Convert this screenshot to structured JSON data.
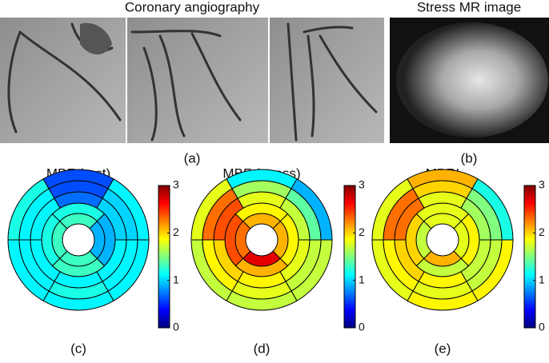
{
  "header_left": "Coronary angiography",
  "header_right": "Stress MR image",
  "caption_a": "(a)",
  "caption_b": "(b)",
  "chart_data": [
    {
      "type": "bullseye",
      "title": "MBF (rest)",
      "caption": "(c)",
      "colormap": "jet",
      "clim": [
        0,
        3
      ],
      "cticks": [
        0,
        1,
        2,
        3
      ],
      "rings": [
        [
          1.3,
          1.3,
          1.3,
          0.9
        ],
        [
          1.3,
          1.2,
          1.2,
          0.9
        ],
        [
          1.1,
          1.1,
          1.1,
          1.1,
          0.7,
          1.0
        ],
        [
          1.1,
          1.2,
          1.1,
          1.1,
          0.6,
          1.0
        ],
        [
          1.1,
          1.1,
          1.1,
          1.2,
          0.6,
          1.1
        ]
      ]
    },
    {
      "type": "bullseye",
      "title": "MBF (stress)",
      "caption": "(d)",
      "colormap": "jet",
      "clim": [
        0,
        3
      ],
      "cticks": [
        0,
        1,
        2,
        3
      ],
      "rings": [
        [
          2.7,
          2.3,
          2.1,
          2.1
        ],
        [
          2.1,
          2.4,
          1.9,
          1.9
        ],
        [
          1.8,
          1.9,
          2.0,
          2.4,
          1.8,
          1.7
        ],
        [
          1.7,
          1.8,
          1.9,
          2.3,
          1.6,
          1.4
        ],
        [
          1.7,
          1.7,
          1.7,
          1.8,
          1.1,
          0.9
        ]
      ]
    },
    {
      "type": "bullseye",
      "title": "MPRI",
      "caption": "(e)",
      "colormap": "jet",
      "clim": [
        0,
        3
      ],
      "cticks": [
        0,
        1,
        2,
        3
      ],
      "rings": [
        [
          2.1,
          1.7,
          1.8,
          1.8
        ],
        [
          1.7,
          2.0,
          1.8,
          1.9
        ],
        [
          1.7,
          1.9,
          2.0,
          2.3,
          1.8,
          1.6
        ],
        [
          1.7,
          1.8,
          1.9,
          2.3,
          2.0,
          1.5
        ],
        [
          1.9,
          1.9,
          1.8,
          1.8,
          2.1,
          1.2
        ]
      ]
    }
  ]
}
